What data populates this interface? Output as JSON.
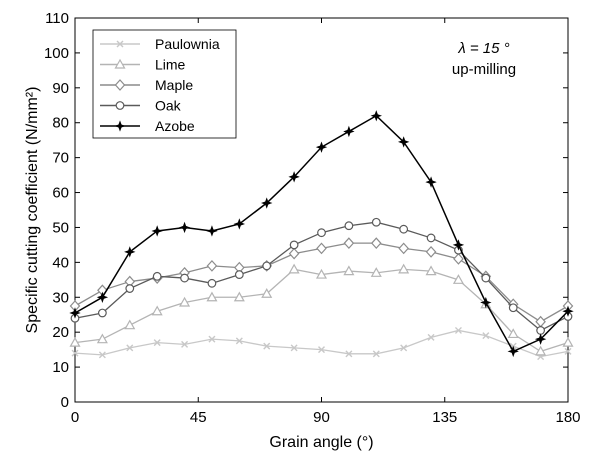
{
  "chart_data": {
    "type": "line",
    "xlabel": "Grain angle (°)",
    "ylabel": "Specific cutting coefficient (N/mm²)",
    "xlim": [
      0,
      180
    ],
    "ylim": [
      0,
      110
    ],
    "xticks": [
      0,
      45,
      90,
      135,
      180
    ],
    "yticks": [
      0,
      10,
      20,
      30,
      40,
      50,
      60,
      70,
      80,
      90,
      100,
      110
    ],
    "grid": false,
    "legend_position": "top-left",
    "annotation": {
      "line1": "λ = 15 °",
      "line2": "up-milling"
    },
    "x": [
      0,
      10,
      20,
      30,
      40,
      50,
      60,
      70,
      80,
      90,
      100,
      110,
      120,
      130,
      140,
      150,
      160,
      170,
      180
    ],
    "series": [
      {
        "name": "Paulownia",
        "color": "#c8c8c8",
        "marker": "x",
        "values": [
          14,
          13.5,
          15.5,
          17,
          16.5,
          18,
          17.5,
          16,
          15.5,
          15,
          13.8,
          13.8,
          15.5,
          18.5,
          20.5,
          19,
          16,
          13,
          14.5
        ]
      },
      {
        "name": "Lime",
        "color": "#b4b4b4",
        "marker": "triangle",
        "values": [
          17,
          18,
          22,
          26,
          28.5,
          30,
          30,
          31,
          38,
          36.5,
          37.5,
          37,
          38,
          37.5,
          35,
          28,
          19.5,
          14.5,
          17
        ]
      },
      {
        "name": "Maple",
        "color": "#8c8c8c",
        "marker": "diamond",
        "values": [
          27.5,
          32,
          34.5,
          35.5,
          37,
          39,
          38.5,
          39,
          42.5,
          44,
          45.5,
          45.5,
          44,
          43,
          41,
          36,
          28,
          23,
          27.5
        ]
      },
      {
        "name": "Oak",
        "color": "#5a5a5a",
        "marker": "circle",
        "values": [
          24,
          25.5,
          32.5,
          36,
          35.5,
          34,
          36.5,
          39,
          45,
          48.5,
          50.5,
          51.5,
          49.5,
          47,
          43.5,
          35.5,
          27,
          20.5,
          24.5
        ]
      },
      {
        "name": "Azobe",
        "color": "#000000",
        "marker": "star",
        "values": [
          25.5,
          30,
          43,
          49,
          50,
          49,
          51,
          57,
          64.5,
          73,
          77.5,
          82,
          74.5,
          63,
          45,
          28.5,
          14.5,
          18,
          26
        ]
      }
    ]
  }
}
